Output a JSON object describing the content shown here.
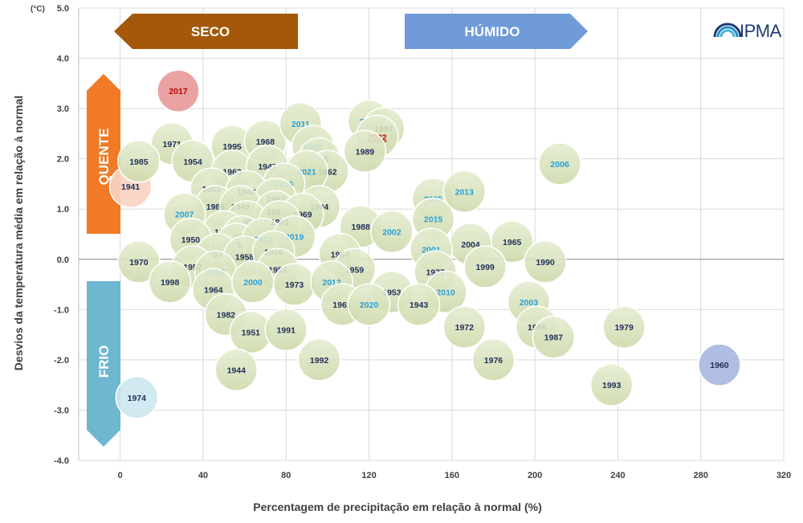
{
  "chart_data": {
    "type": "scatter",
    "title": "",
    "unit_label": "(°C)",
    "xlabel": "Percentagem de precipitação em relação à normal (%)",
    "ylabel": "Desvios da temperatura média em relação à normal",
    "xlim": [
      -20,
      320
    ],
    "ylim": [
      -4.0,
      5.0
    ],
    "xticks": [
      "0",
      "40",
      "80",
      "120",
      "160",
      "200",
      "240",
      "280",
      "320"
    ],
    "xtick_values": [
      0,
      40,
      80,
      120,
      160,
      200,
      240,
      280,
      320
    ],
    "yticks": [
      "5.0",
      "4.0",
      "3.0",
      "2.0",
      "1.0",
      "0.0",
      "-1.0",
      "-2.0",
      "-3.0",
      "-4.0"
    ],
    "ytick_values": [
      5,
      4,
      3,
      2,
      1,
      0,
      -1,
      -2,
      -3,
      -4
    ],
    "grid": true,
    "categories": {
      "seco": "SECO",
      "humido": "HÚMIDO",
      "quente": "QUENTE",
      "frio": "FRIO"
    },
    "logo": "IPMA",
    "colors": {
      "bubble_fill": "#d8e4bc",
      "bubble_stroke": "#b6c58f",
      "label_recent": "#2aa0d8",
      "label_default": "#1f2f5a",
      "highlight_year": "#c00000",
      "seco_arrow": "#a3580a",
      "humido_arrow": "#6f9bd8",
      "quente_arrow": "#f07a26",
      "frio_arrow": "#6fb6cf"
    },
    "points": [
      {
        "year": "2017",
        "x": 28,
        "y": 3.35,
        "fill": "#e99a9a",
        "label_color": "#c00000"
      },
      {
        "year": "1941",
        "x": 5,
        "y": 1.45,
        "fill": "#f8d3c0",
        "label_color": "#1f2f5a"
      },
      {
        "year": "1974",
        "x": 8,
        "y": -2.75,
        "fill": "#cde7ef",
        "label_color": "#1f2f5a"
      },
      {
        "year": "1960",
        "x": 289,
        "y": -2.1,
        "fill": "#a8b8e0",
        "label_color": "#1f2f5a"
      },
      {
        "year": "2014",
        "x": 120,
        "y": 2.75,
        "label_color": "#2aa0d8"
      },
      {
        "year": "1997",
        "x": 127,
        "y": 2.6
      },
      {
        "year": "2022",
        "x": 124,
        "y": 2.45,
        "label_color": "#c00000",
        "underline": true
      },
      {
        "year": "1989",
        "x": 118,
        "y": 2.15
      },
      {
        "year": "1971",
        "x": 25,
        "y": 2.3
      },
      {
        "year": "1995",
        "x": 54,
        "y": 2.25
      },
      {
        "year": "1968",
        "x": 70,
        "y": 2.35
      },
      {
        "year": "2011",
        "x": 87,
        "y": 2.7,
        "label_color": "#2aa0d8"
      },
      {
        "year": "2009",
        "x": 93,
        "y": 2.25,
        "label_color": "#2aa0d8"
      },
      {
        "year": "1985",
        "x": 9,
        "y": 1.95
      },
      {
        "year": "1954",
        "x": 35,
        "y": 1.95
      },
      {
        "year": "1963",
        "x": 54,
        "y": 1.75
      },
      {
        "year": "1947",
        "x": 71,
        "y": 1.85
      },
      {
        "year": "1945",
        "x": 96,
        "y": 2.0
      },
      {
        "year": "1962",
        "x": 100,
        "y": 1.75
      },
      {
        "year": "2021",
        "x": 90,
        "y": 1.75,
        "label_color": "#2aa0d8"
      },
      {
        "year": "2016",
        "x": 79,
        "y": 1.5,
        "label_color": "#2aa0d8"
      },
      {
        "year": "1983",
        "x": 44,
        "y": 1.4
      },
      {
        "year": "1948",
        "x": 61,
        "y": 1.35
      },
      {
        "year": "1967",
        "x": 75,
        "y": 1.2
      },
      {
        "year": "1986",
        "x": 46,
        "y": 1.05
      },
      {
        "year": "1949",
        "x": 58,
        "y": 1.05
      },
      {
        "year": "1946",
        "x": 75,
        "y": 0.95
      },
      {
        "year": "1994",
        "x": 96,
        "y": 1.05
      },
      {
        "year": "1969",
        "x": 88,
        "y": 0.9
      },
      {
        "year": "2007",
        "x": 31,
        "y": 0.9,
        "label_color": "#2aa0d8"
      },
      {
        "year": "1980",
        "x": 61,
        "y": 0.75
      },
      {
        "year": "1981",
        "x": 77,
        "y": 0.75
      },
      {
        "year": "1975",
        "x": 50,
        "y": 0.55
      },
      {
        "year": "1996",
        "x": 59,
        "y": 0.45
      },
      {
        "year": "1950",
        "x": 34,
        "y": 0.4
      },
      {
        "year": "1955",
        "x": 56,
        "y": 0.3
      },
      {
        "year": "2018",
        "x": 69,
        "y": 0.4,
        "label_color": "#2aa0d8"
      },
      {
        "year": "2019",
        "x": 84,
        "y": 0.45,
        "label_color": "#2aa0d8"
      },
      {
        "year": "1978",
        "x": 47,
        "y": 0.1
      },
      {
        "year": "1958",
        "x": 60,
        "y": 0.05
      },
      {
        "year": "1956",
        "x": 74,
        "y": 0.15
      },
      {
        "year": "1988",
        "x": 116,
        "y": 0.65
      },
      {
        "year": "2002",
        "x": 131,
        "y": 0.55,
        "label_color": "#2aa0d8"
      },
      {
        "year": "2005",
        "x": 151,
        "y": 1.2,
        "label_color": "#2aa0d8"
      },
      {
        "year": "2013",
        "x": 166,
        "y": 1.35,
        "label_color": "#2aa0d8"
      },
      {
        "year": "2015",
        "x": 151,
        "y": 0.8,
        "label_color": "#2aa0d8"
      },
      {
        "year": "2006",
        "x": 212,
        "y": 1.9,
        "label_color": "#2aa0d8"
      },
      {
        "year": "1984",
        "x": 106,
        "y": 0.1
      },
      {
        "year": "1959",
        "x": 113,
        "y": -0.2
      },
      {
        "year": "1970",
        "x": 9,
        "y": -0.05
      },
      {
        "year": "1957",
        "x": 35,
        "y": -0.15
      },
      {
        "year": "2008",
        "x": 46,
        "y": -0.25,
        "label_color": "#2aa0d8"
      },
      {
        "year": "1952",
        "x": 76,
        "y": -0.2
      },
      {
        "year": "1998",
        "x": 24,
        "y": -0.45
      },
      {
        "year": "1964",
        "x": 45,
        "y": -0.6
      },
      {
        "year": "2000",
        "x": 64,
        "y": -0.45,
        "label_color": "#2aa0d8"
      },
      {
        "year": "1973",
        "x": 84,
        "y": -0.5
      },
      {
        "year": "2012",
        "x": 102,
        "y": -0.45,
        "label_color": "#2aa0d8"
      },
      {
        "year": "2004",
        "x": 169,
        "y": 0.3
      },
      {
        "year": "1965",
        "x": 189,
        "y": 0.35
      },
      {
        "year": "2001",
        "x": 150,
        "y": 0.2,
        "label_color": "#2aa0d8"
      },
      {
        "year": "1977",
        "x": 152,
        "y": -0.25
      },
      {
        "year": "1999",
        "x": 176,
        "y": -0.15
      },
      {
        "year": "1990",
        "x": 205,
        "y": -0.05
      },
      {
        "year": "1953",
        "x": 131,
        "y": -0.65
      },
      {
        "year": "2010",
        "x": 157,
        "y": -0.65,
        "label_color": "#2aa0d8"
      },
      {
        "year": "1961",
        "x": 107,
        "y": -0.9
      },
      {
        "year": "2020",
        "x": 120,
        "y": -0.9,
        "label_color": "#2aa0d8"
      },
      {
        "year": "1943",
        "x": 144,
        "y": -0.9
      },
      {
        "year": "2003",
        "x": 197,
        "y": -0.85,
        "label_color": "#2aa0d8"
      },
      {
        "year": "1982",
        "x": 51,
        "y": -1.1
      },
      {
        "year": "1951",
        "x": 63,
        "y": -1.45
      },
      {
        "year": "1991",
        "x": 80,
        "y": -1.4
      },
      {
        "year": "1972",
        "x": 166,
        "y": -1.35
      },
      {
        "year": "1966",
        "x": 201,
        "y": -1.35
      },
      {
        "year": "1987",
        "x": 209,
        "y": -1.55
      },
      {
        "year": "1979",
        "x": 243,
        "y": -1.35
      },
      {
        "year": "1976",
        "x": 180,
        "y": -2.0
      },
      {
        "year": "1992",
        "x": 96,
        "y": -2.0
      },
      {
        "year": "1944",
        "x": 56,
        "y": -2.2
      },
      {
        "year": "1993",
        "x": 237,
        "y": -2.5
      }
    ]
  }
}
